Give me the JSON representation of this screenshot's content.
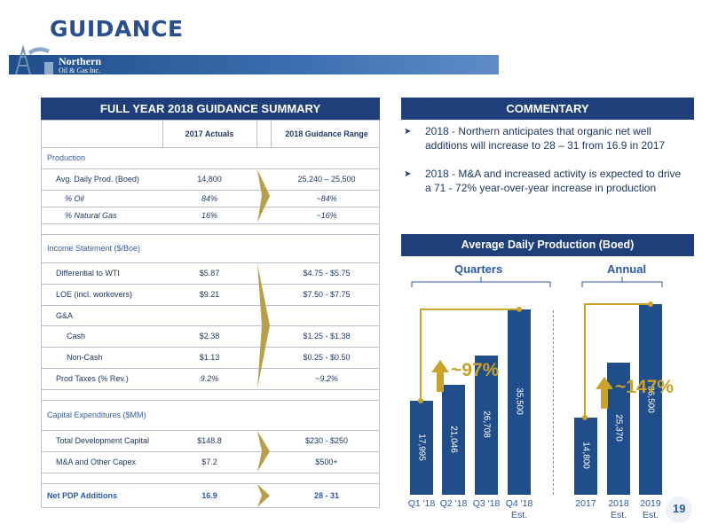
{
  "title": "GUIDANCE",
  "logo": {
    "line1": "Northern",
    "line2": "Oil & Gas Inc."
  },
  "table": {
    "header": "FULL YEAR 2018 GUIDANCE SUMMARY",
    "col1": "2017 Actuals",
    "col2": "2018 Guidance Range",
    "production": "Production",
    "avg_prod": {
      "label": "Avg. Daily Prod. (Boed)",
      "actual": "14,800",
      "guide": "25,240 – 25,500"
    },
    "oil": {
      "label": "% Oil",
      "actual": "84%",
      "guide": "~84%"
    },
    "gas": {
      "label": "% Natural Gas",
      "actual": "16%",
      "guide": "~16%"
    },
    "income": "Income Statement ($/Boe)",
    "diff": {
      "label": "Differential to WTI",
      "actual": "$5.87",
      "guide": "$4.75 - $5.75"
    },
    "loe": {
      "label": "LOE (incl. workovers)",
      "actual": "$9.21",
      "guide": "$7.50 - $7.75"
    },
    "ga": {
      "label": "G&A"
    },
    "cash": {
      "label": "Cash",
      "actual": "$2.38",
      "guide": "$1.25 - $1.38"
    },
    "noncash": {
      "label": "Non-Cash",
      "actual": "$1.13",
      "guide": "$0.25 - $0.50"
    },
    "prodtax": {
      "label": "Prod Taxes (% Rev.)",
      "actual": "9.2%",
      "guide": "~9.2%"
    },
    "capex": "Capital Expenditures ($MM)",
    "tdc": {
      "label": "Total Development Capital",
      "actual": "$148.8",
      "guide": "$230 - $250"
    },
    "ma": {
      "label": "M&A and Other Capex",
      "actual": "$7.2",
      "guide": "$500+"
    },
    "pdp": {
      "label": "Net PDP Additions",
      "actual": "16.9",
      "guide": "28 - 31"
    }
  },
  "commentary": {
    "header": "COMMENTARY",
    "b1": "2018 - Northern anticipates that organic net well additions will increase to 28 – 31 from 16.9 in 2017",
    "b2": "2018 - M&A and increased activity is expected to drive a 71 - 72% year-over-year increase in production"
  },
  "chart_data": {
    "type": "bar",
    "title": "Average Daily Production (Boed)",
    "groups": [
      {
        "name": "Quarters",
        "categories": [
          "Q1 '18",
          "Q2 '18",
          "Q3 '18",
          "Q4 '18 Est."
        ],
        "values": [
          17995,
          21046,
          26708,
          35500
        ],
        "labels": [
          "17,995",
          "21,046",
          "26,708",
          "35,500"
        ],
        "growth": "~97%"
      },
      {
        "name": "Annual",
        "categories": [
          "2017",
          "2018 Est.",
          "2019 Est."
        ],
        "values": [
          14800,
          25370,
          36500
        ],
        "labels": [
          "14,800",
          "25,370",
          "36,500"
        ],
        "growth": "~147%"
      }
    ],
    "bar_color": "#1f4e8a",
    "accent_color": "#c9a227"
  },
  "page_number": "19"
}
